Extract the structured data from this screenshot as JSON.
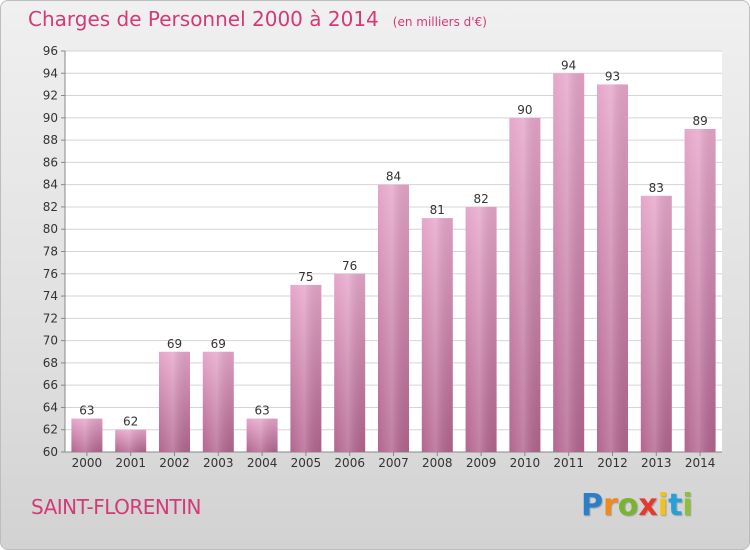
{
  "header": {
    "title": "Charges de Personnel 2000 à 2014",
    "subtitle": "(en milliers d'€)"
  },
  "footer": {
    "place": "SAINT-FLORENTIN",
    "logo_letters": [
      {
        "ch": "P",
        "color": "#2a7fc9"
      },
      {
        "ch": "r",
        "color": "#f08a1d"
      },
      {
        "ch": "o",
        "color": "#7ab32e"
      },
      {
        "ch": "x",
        "color": "#e23b2e"
      },
      {
        "ch": "i",
        "color": "#f3c11a"
      },
      {
        "ch": "t",
        "color": "#2a9fd6"
      },
      {
        "ch": "i",
        "color": "#8dbf3a"
      }
    ]
  },
  "chart_data": {
    "type": "bar",
    "categories": [
      "2000",
      "2001",
      "2002",
      "2003",
      "2004",
      "2005",
      "2006",
      "2007",
      "2008",
      "2009",
      "2010",
      "2011",
      "2012",
      "2013",
      "2014"
    ],
    "values": [
      63,
      62,
      69,
      69,
      63,
      75,
      76,
      84,
      81,
      82,
      90,
      94,
      93,
      83,
      89
    ],
    "ylim": [
      60,
      96
    ],
    "yticks": [
      60,
      62,
      64,
      66,
      68,
      70,
      72,
      74,
      76,
      78,
      80,
      82,
      84,
      86,
      88,
      90,
      92,
      94,
      96
    ],
    "grid": true,
    "bar_color": "#d47fb0"
  }
}
